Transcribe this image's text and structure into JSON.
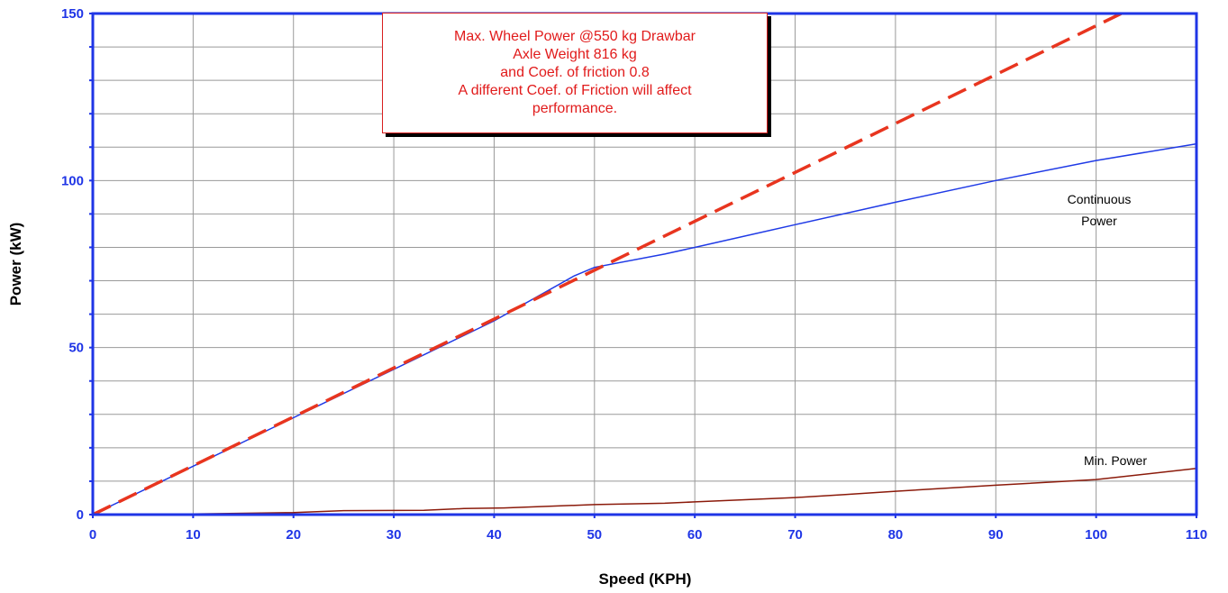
{
  "colors": {
    "axis": "#1f35e6",
    "grid": "#999999",
    "continuous_power": "#1f3ae6",
    "min_power": "#8b1a0a",
    "max_wheel_power": "#e8351f",
    "note_text": "#e11b1b"
  },
  "annotation": {
    "lines": [
      "Max. Wheel Power @550 kg Drawbar",
      "Axle Weight 816 kg",
      "and Coef. of friction 0.8",
      "A different Coef. of Friction will affect",
      "performance."
    ]
  },
  "chart_data": {
    "type": "line",
    "title": "",
    "xlabel": "Speed  (KPH)",
    "ylabel": "Power  (kW)",
    "xlim": [
      0,
      110
    ],
    "ylim": [
      0,
      150
    ],
    "x_ticks": [
      "0",
      "10",
      "20",
      "30",
      "40",
      "50",
      "60",
      "70",
      "80",
      "90",
      "100",
      "110"
    ],
    "y_ticks": [
      "0",
      "50",
      "100",
      "150"
    ],
    "grid": true,
    "series": [
      {
        "name": "Continuous Power",
        "style": "solid",
        "x": [
          0,
          10,
          20,
          30,
          40,
          48,
          50,
          57,
          60,
          70,
          80,
          90,
          100,
          110
        ],
        "y": [
          0,
          14.5,
          29,
          43.5,
          58,
          71.5,
          74,
          78,
          80,
          86.8,
          93.5,
          100,
          106,
          111
        ]
      },
      {
        "name": "Min. Power",
        "style": "solid",
        "x": [
          0,
          10,
          20,
          25,
          33,
          37,
          41,
          50,
          57,
          60,
          70,
          75,
          80,
          90,
          100,
          110
        ],
        "y": [
          0,
          0.2,
          0.6,
          1.2,
          1.3,
          1.8,
          2,
          3,
          3.4,
          3.8,
          5.1,
          6,
          7,
          8.8,
          10.5,
          13.8
        ]
      },
      {
        "name": "Max. Wheel Power",
        "style": "dashed",
        "x": [
          0,
          102.5
        ],
        "y": [
          0,
          150
        ]
      }
    ]
  }
}
